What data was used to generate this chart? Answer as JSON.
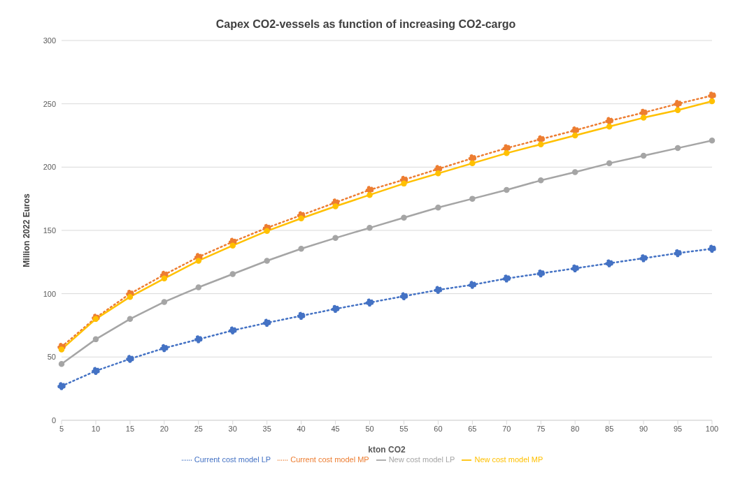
{
  "chart_data": {
    "type": "line",
    "title": "Capex CO2-vessels as function of increasing CO2-cargo",
    "xlabel": "kton CO2",
    "ylabel": "Million  2022 Euros",
    "categories": [
      "5",
      "10",
      "15",
      "20",
      "25",
      "30",
      "35",
      "40",
      "45",
      "50",
      "55",
      "60",
      "65",
      "70",
      "75",
      "80",
      "85",
      "90",
      "95",
      "100"
    ],
    "series": [
      {
        "name": "Current cost model LP",
        "color": "#4472c4",
        "line_style": "dotted",
        "values": [
          27,
          39,
          48.5,
          57,
          64,
          71,
          77,
          82.5,
          88,
          93,
          98,
          103,
          107,
          112,
          116,
          120,
          124,
          128,
          132,
          135.5
        ]
      },
      {
        "name": "Current cost model MP",
        "color": "#ed7d31",
        "line_style": "dotted",
        "values": [
          58,
          81,
          100,
          115,
          129,
          141,
          152,
          162,
          172,
          182,
          190,
          198.5,
          207,
          215,
          222,
          229,
          236.5,
          243,
          250,
          256.5
        ]
      },
      {
        "name": "New cost model LP",
        "color": "#a5a5a5",
        "line_style": "solid",
        "values": [
          44.5,
          64,
          80,
          93.5,
          105,
          115.5,
          126,
          135.5,
          144,
          152,
          160,
          168,
          175,
          182,
          189.5,
          196,
          203,
          209,
          215,
          221
        ]
      },
      {
        "name": "New cost model MP",
        "color": "#ffc000",
        "line_style": "solid",
        "values": [
          56,
          80,
          97.5,
          112,
          126,
          138,
          149.5,
          159.5,
          169,
          178,
          187,
          195,
          203,
          211,
          218,
          225,
          232,
          239,
          245,
          252
        ]
      }
    ],
    "ylim": [
      0,
      300
    ],
    "yticks": [
      0,
      50,
      100,
      150,
      200,
      250,
      300
    ],
    "grid": "y",
    "legend": "bottom",
    "marker": "circle"
  }
}
